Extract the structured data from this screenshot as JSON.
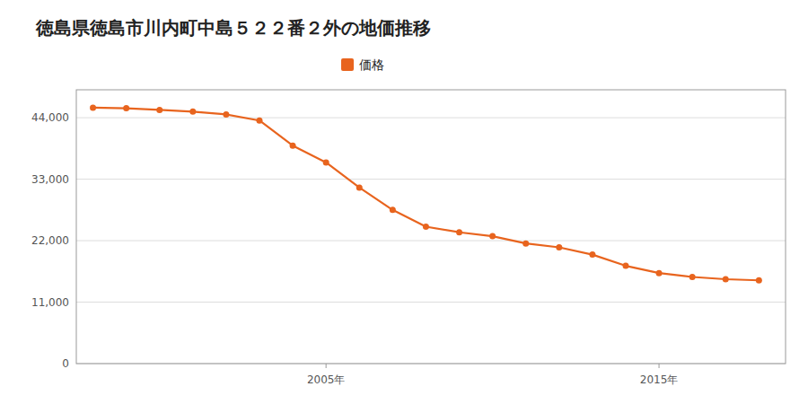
{
  "chart_data": {
    "type": "line",
    "title": "徳島県徳島市川内町中島５２２番２外の地価推移",
    "x": [
      1998,
      1999,
      2000,
      2001,
      2002,
      2003,
      2004,
      2005,
      2006,
      2007,
      2008,
      2009,
      2010,
      2011,
      2012,
      2013,
      2014,
      2015,
      2016,
      2017,
      2018
    ],
    "series": [
      {
        "name": "価格",
        "color": "#e8641e",
        "marker": "circle",
        "line_style": "solid",
        "values": [
          45800,
          45700,
          45400,
          45100,
          44600,
          43500,
          39000,
          36000,
          31500,
          27500,
          24500,
          23500,
          22800,
          21500,
          20800,
          19500,
          17500,
          16200,
          15500,
          15100,
          14900
        ]
      }
    ],
    "xlim": [
      1997.5,
      2018.8
    ],
    "xticks": [
      {
        "value": 2005,
        "label": "2005年"
      },
      {
        "value": 2015,
        "label": "2015年"
      }
    ],
    "ylim": [
      0,
      49000
    ],
    "yticks": [
      0,
      {
        "value": 11000,
        "label": "11,000"
      },
      {
        "value": 22000,
        "label": "22,000"
      },
      {
        "value": 33000,
        "label": "33,000"
      },
      {
        "value": 44000,
        "label": "44,000"
      }
    ],
    "grid": true,
    "legend": "top"
  }
}
